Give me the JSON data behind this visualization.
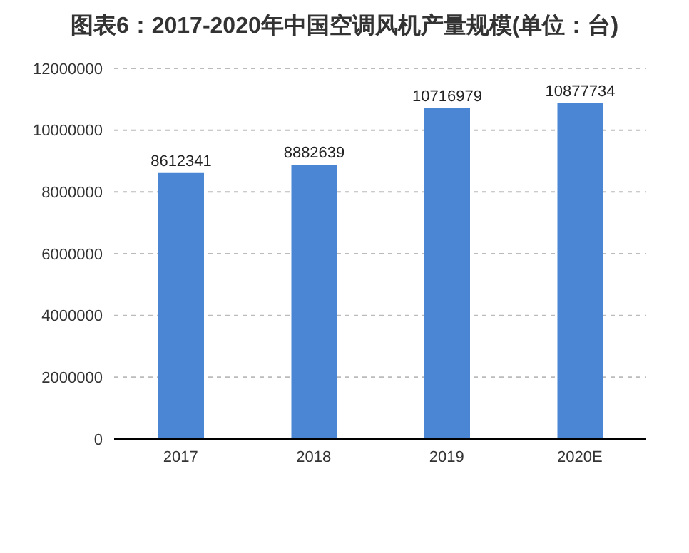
{
  "chart_data": {
    "type": "bar",
    "title": "图表6：2017-2020年中国空调风机产量规模(单位：台)",
    "categories": [
      "2017",
      "2018",
      "2019",
      "2020E"
    ],
    "values": [
      8612341,
      8882639,
      10716979,
      10877734
    ],
    "color": "#4a86d4",
    "ylim": [
      0,
      12000000
    ],
    "yticks": [
      0,
      2000000,
      4000000,
      6000000,
      8000000,
      10000000,
      12000000
    ],
    "grid": "y",
    "data_labels": true
  }
}
